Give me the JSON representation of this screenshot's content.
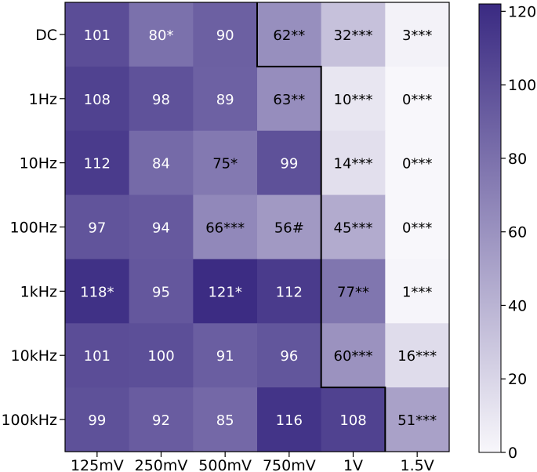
{
  "chart_data": {
    "type": "heatmap",
    "title": "",
    "xlabel": "",
    "ylabel": "",
    "x_categories": [
      "125mV",
      "250mV",
      "500mV",
      "750mV",
      "1V",
      "1.5V"
    ],
    "y_categories": [
      "DC",
      "1Hz",
      "10Hz",
      "100Hz",
      "1kHz",
      "10kHz",
      "100kHz"
    ],
    "values": [
      [
        101,
        80,
        90,
        62,
        32,
        3
      ],
      [
        108,
        98,
        89,
        63,
        10,
        0
      ],
      [
        112,
        84,
        75,
        99,
        14,
        0
      ],
      [
        97,
        94,
        66,
        56,
        45,
        0
      ],
      [
        118,
        95,
        121,
        112,
        77,
        1
      ],
      [
        101,
        100,
        91,
        96,
        60,
        16
      ],
      [
        99,
        92,
        85,
        116,
        108,
        51
      ]
    ],
    "cell_labels": [
      [
        "101",
        "80*",
        "90",
        "62**",
        "32***",
        "3***"
      ],
      [
        "108",
        "98",
        "89",
        "63**",
        "10***",
        "0***"
      ],
      [
        "112",
        "84",
        "75*",
        "99",
        "14***",
        "0***"
      ],
      [
        "97",
        "94",
        "66***",
        "56#",
        "45***",
        "0***"
      ],
      [
        "118*",
        "95",
        "121*",
        "112",
        "77**",
        "1***"
      ],
      [
        "101",
        "100",
        "91",
        "96",
        "60***",
        "16***"
      ],
      [
        "99",
        "92",
        "85",
        "116",
        "108",
        "51***"
      ]
    ],
    "colorbar": {
      "range": [
        0,
        122
      ],
      "ticks": [
        0,
        20,
        40,
        60,
        80,
        100,
        120
      ],
      "colors": {
        "low": "#f8f7fb",
        "high": "#3a2a82"
      }
    },
    "text_colors": {
      "light": "#ffffff",
      "dark": "#000000"
    },
    "text_threshold": 80,
    "boundary": {
      "description": "staircase line separating significant region",
      "steps_col_start_per_row": [
        3,
        4,
        4,
        4,
        4,
        4,
        5
      ]
    }
  }
}
